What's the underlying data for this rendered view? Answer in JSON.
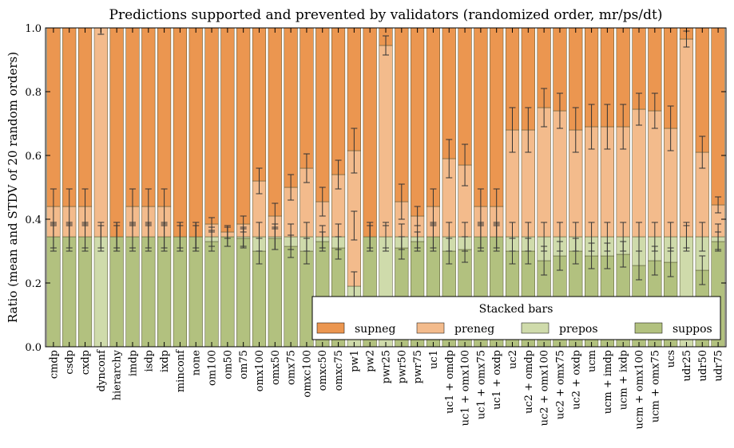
{
  "chart_data": {
    "type": "bar",
    "stacked": true,
    "title": "Predictions supported and prevented by validators (randomized order, mr/ps/dt)",
    "ylabel": "Ratio (mean and STDV of 20 random orders)",
    "xlabel": "",
    "ylim": [
      0,
      1.0
    ],
    "yticks": [
      "0.0",
      "0.2",
      "0.4",
      "0.6",
      "0.8",
      "1.0"
    ],
    "grid": false,
    "legend": {
      "title": "Stacked bars",
      "placement": "lower-right",
      "entries": [
        "supneg",
        "preneg",
        "prepos",
        "suppos"
      ]
    },
    "colors": {
      "supneg": "#eb9650",
      "preneg": "#f3bb8c",
      "prepos": "#cfdbab",
      "suppos": "#b2c17f",
      "edge": "#4d4d2d",
      "error": "#333333"
    },
    "categories": [
      "cmdp",
      "csdp",
      "cxdp",
      "dynconf",
      "hierarchy",
      "imdp",
      "isdp",
      "ixdp",
      "minconf",
      "none",
      "om100",
      "om50",
      "om75",
      "omx100",
      "omx50",
      "omx75",
      "omxc100",
      "omxc50",
      "omxc75",
      "pw1",
      "pw2",
      "pwr25",
      "pwr50",
      "pwr75",
      "uc1",
      "uc1 + omdp",
      "uc1 + omx100",
      "uc1 + omx75",
      "uc1 + oxdp",
      "uc2",
      "uc2 + omdp",
      "uc2 + omx100",
      "uc2 + omx75",
      "uc2 + oxdp",
      "ucm",
      "ucm + imdp",
      "ucm + ixdp",
      "ucm + omx100",
      "ucm + omx75",
      "ucs",
      "udr25",
      "udr50",
      "udr75"
    ],
    "series": [
      {
        "name": "suppos",
        "values": [
          0.345,
          0.345,
          0.345,
          0,
          0.345,
          0.345,
          0.345,
          0.345,
          0.345,
          0.345,
          0.33,
          0.345,
          0.34,
          0.3,
          0.34,
          0.315,
          0.3,
          0.33,
          0.31,
          0,
          0.345,
          0,
          0.31,
          0.33,
          0.345,
          0.3,
          0.305,
          0.345,
          0.345,
          0.3,
          0.3,
          0.27,
          0.285,
          0.3,
          0.285,
          0.285,
          0.29,
          0.255,
          0.27,
          0.265,
          0,
          0.24,
          0.33
        ]
      },
      {
        "name": "prepos",
        "values": [
          0,
          0,
          0,
          0.345,
          0,
          0,
          0,
          0,
          0,
          0,
          0.015,
          0,
          0.005,
          0.045,
          0.005,
          0.03,
          0.045,
          0.015,
          0.035,
          0.19,
          0,
          0.345,
          0.035,
          0.015,
          0,
          0.045,
          0.04,
          0,
          0,
          0.045,
          0.045,
          0.075,
          0.06,
          0.045,
          0.06,
          0.06,
          0.055,
          0.09,
          0.075,
          0.08,
          0.345,
          0.105,
          0.015
        ]
      },
      {
        "name": "preneg",
        "values": [
          0.095,
          0.095,
          0.095,
          0.655,
          0,
          0.095,
          0.095,
          0.095,
          0,
          0,
          0.04,
          0.015,
          0.04,
          0.175,
          0.065,
          0.155,
          0.215,
          0.11,
          0.195,
          0.425,
          0,
          0.6,
          0.11,
          0.065,
          0.095,
          0.245,
          0.225,
          0.095,
          0.095,
          0.335,
          0.335,
          0.405,
          0.395,
          0.335,
          0.345,
          0.345,
          0.345,
          0.4,
          0.395,
          0.34,
          0.62,
          0.265,
          0.1
        ]
      },
      {
        "name": "supneg",
        "values": [
          0.56,
          0.56,
          0.56,
          0,
          0.655,
          0.56,
          0.56,
          0.56,
          0.655,
          0.655,
          0.615,
          0.64,
          0.615,
          0.48,
          0.59,
          0.5,
          0.44,
          0.545,
          0.46,
          0.385,
          0.655,
          0.055,
          0.545,
          0.59,
          0.56,
          0.41,
          0.43,
          0.56,
          0.56,
          0.32,
          0.32,
          0.25,
          0.26,
          0.32,
          0.31,
          0.31,
          0.31,
          0.255,
          0.26,
          0.315,
          0.035,
          0.39,
          0.555
        ]
      }
    ],
    "error_bars": [
      {
        "name": "suppos_top",
        "values": [
          0.345,
          0.345,
          0.345,
          0.345,
          0.345,
          0.345,
          0.345,
          0.345,
          0.345,
          0.345,
          0.33,
          0.345,
          0.34,
          0.3,
          0.34,
          0.315,
          0.3,
          0.33,
          0.31,
          0.19,
          0.345,
          0.345,
          0.31,
          0.33,
          0.345,
          0.3,
          0.305,
          0.345,
          0.345,
          0.3,
          0.3,
          0.27,
          0.285,
          0.3,
          0.285,
          0.285,
          0.29,
          0.255,
          0.27,
          0.265,
          0.345,
          0.24,
          0.33
        ],
        "stdv": [
          0.035,
          0.035,
          0.035,
          0.035,
          0.035,
          0.035,
          0.035,
          0.035,
          0.035,
          0.035,
          0.03,
          0.03,
          0.03,
          0.04,
          0.035,
          0.035,
          0.04,
          0.03,
          0.035,
          0.045,
          0.035,
          0.035,
          0.035,
          0.03,
          0.035,
          0.04,
          0.04,
          0.035,
          0.035,
          0.04,
          0.04,
          0.045,
          0.045,
          0.04,
          0.04,
          0.04,
          0.04,
          0.045,
          0.045,
          0.045,
          0.035,
          0.045,
          0.03
        ]
      },
      {
        "name": "prepos_top",
        "values": [
          0.345,
          0.345,
          0.345,
          0.345,
          0.345,
          0.345,
          0.345,
          0.345,
          0.345,
          0.345,
          0.345,
          0.345,
          0.345,
          0.345,
          0.345,
          0.345,
          0.345,
          0.345,
          0.345,
          0.38,
          0.345,
          0.345,
          0.345,
          0.345,
          0.345,
          0.345,
          0.345,
          0.345,
          0.345,
          0.345,
          0.345,
          0.345,
          0.345,
          0.345,
          0.345,
          0.345,
          0.345,
          0.345,
          0.345,
          0.345,
          0.345,
          0.345,
          0.345
        ],
        "stdv": [
          0.045,
          0.045,
          0.045,
          0.045,
          0.045,
          0.045,
          0.045,
          0.045,
          0.045,
          0.045,
          0.03,
          0.03,
          0.03,
          0.045,
          0.04,
          0.04,
          0.045,
          0.035,
          0.04,
          0.045,
          0.045,
          0.045,
          0.04,
          0.035,
          0.045,
          0.045,
          0.045,
          0.045,
          0.045,
          0.045,
          0.045,
          0.045,
          0.045,
          0.045,
          0.045,
          0.045,
          0.045,
          0.045,
          0.045,
          0.045,
          0.045,
          0.045,
          0.04
        ]
      },
      {
        "name": "preneg_top",
        "values": [
          0.44,
          0.44,
          0.44,
          1.0,
          0.345,
          0.44,
          0.44,
          0.44,
          0.345,
          0.345,
          0.385,
          0.36,
          0.385,
          0.52,
          0.41,
          0.5,
          0.56,
          0.455,
          0.54,
          0.615,
          0.345,
          0.945,
          0.455,
          0.41,
          0.44,
          0.59,
          0.57,
          0.44,
          0.44,
          0.68,
          0.68,
          0.75,
          0.74,
          0.68,
          0.69,
          0.69,
          0.69,
          0.745,
          0.74,
          0.685,
          0.965,
          0.61,
          0.445
        ],
        "stdv": [
          0.055,
          0.055,
          0.055,
          0.02,
          0.045,
          0.055,
          0.055,
          0.055,
          0.045,
          0.045,
          0.02,
          0.02,
          0.025,
          0.04,
          0.04,
          0.04,
          0.045,
          0.045,
          0.045,
          0.07,
          0.045,
          0.03,
          0.055,
          0.03,
          0.055,
          0.06,
          0.065,
          0.055,
          0.055,
          0.07,
          0.07,
          0.06,
          0.055,
          0.07,
          0.07,
          0.07,
          0.07,
          0.05,
          0.055,
          0.07,
          0.025,
          0.05,
          0.025
        ]
      }
    ]
  }
}
